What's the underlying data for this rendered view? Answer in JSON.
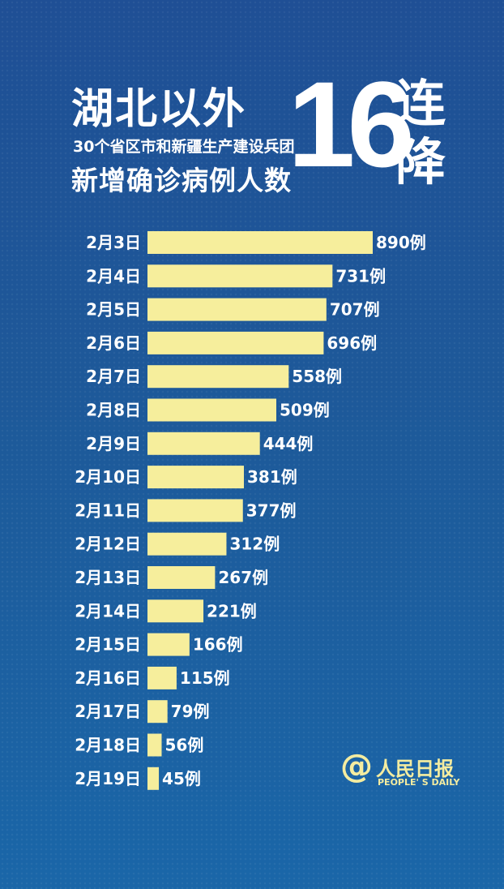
{
  "title": {
    "main": "湖北以外",
    "subtitle": "30个省区市和新疆生产建设兵团",
    "subtitle2": "新增确诊病例人数",
    "count": "16",
    "suffix": "连降"
  },
  "colors": {
    "background": "#1f4f95",
    "bar": "#f6ee9c",
    "text": "#ffffff"
  },
  "logo": {
    "at": "@",
    "name": "人民日报",
    "english": "PEOPLE' S DAILY"
  },
  "chart_data": {
    "type": "bar",
    "orientation": "horizontal",
    "unit_suffix": "例",
    "categories": [
      "2月3日",
      "2月4日",
      "2月5日",
      "2月6日",
      "2月7日",
      "2月8日",
      "2月9日",
      "2月10日",
      "2月11日",
      "2月12日",
      "2月13日",
      "2月14日",
      "2月15日",
      "2月16日",
      "2月17日",
      "2月18日",
      "2月19日"
    ],
    "values": [
      890,
      731,
      707,
      696,
      558,
      509,
      444,
      381,
      377,
      312,
      267,
      221,
      166,
      115,
      79,
      56,
      45
    ],
    "data_labels": [
      "890例",
      "731例",
      "707例",
      "696例",
      "558例",
      "509例",
      "444例",
      "381例",
      "377例",
      "312例",
      "267例",
      "221例",
      "166例",
      "115例",
      "79例",
      "56例",
      "45例"
    ],
    "xlim": [
      0,
      890
    ],
    "grid": false
  }
}
